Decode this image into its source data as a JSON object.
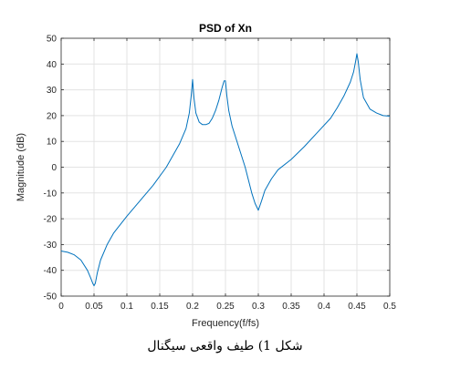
{
  "chart_data": {
    "type": "line",
    "title": "PSD of Xn",
    "xlabel": "Frequency(f/fs)",
    "ylabel": "Magnitude (dB)",
    "xlim": [
      0,
      0.5
    ],
    "ylim": [
      -50,
      50
    ],
    "xticks": [
      0,
      0.05,
      0.1,
      0.15,
      0.2,
      0.25,
      0.3,
      0.35,
      0.4,
      0.45,
      0.5
    ],
    "xtick_labels": [
      "0",
      "0.05",
      "0.1",
      "0.15",
      "0.2",
      "0.25",
      "0.3",
      "0.35",
      "0.4",
      "0.45",
      "0.5"
    ],
    "yticks": [
      -50,
      -40,
      -30,
      -20,
      -10,
      0,
      10,
      20,
      30,
      40,
      50
    ],
    "ytick_labels": [
      "-50",
      "-40",
      "-30",
      "-20",
      "-10",
      "0",
      "10",
      "20",
      "30",
      "40",
      "50"
    ],
    "grid": true,
    "line_color": "#0072bd",
    "series": [
      {
        "x": [
          0,
          0.01,
          0.02,
          0.03,
          0.04,
          0.045,
          0.048,
          0.05,
          0.052,
          0.055,
          0.06,
          0.07,
          0.08,
          0.1,
          0.12,
          0.14,
          0.16,
          0.18,
          0.19,
          0.195,
          0.198,
          0.2,
          0.202,
          0.205,
          0.21,
          0.215,
          0.22,
          0.225,
          0.23,
          0.235,
          0.24,
          0.245,
          0.248,
          0.25,
          0.252,
          0.255,
          0.26,
          0.27,
          0.28,
          0.29,
          0.295,
          0.3,
          0.305,
          0.31,
          0.32,
          0.33,
          0.35,
          0.37,
          0.39,
          0.41,
          0.42,
          0.43,
          0.44,
          0.445,
          0.448,
          0.45,
          0.452,
          0.455,
          0.46,
          0.47,
          0.48,
          0.49,
          0.5
        ],
        "y": [
          -32.5,
          -33,
          -34,
          -36,
          -40,
          -43,
          -45,
          -46,
          -45,
          -41,
          -36,
          -30,
          -25.5,
          -19,
          -13,
          -7,
          0,
          9,
          15,
          21,
          28,
          34,
          27,
          21,
          17.5,
          16.5,
          16.5,
          17,
          19,
          22,
          26,
          31,
          33.5,
          33.5,
          28,
          22,
          16,
          8,
          0,
          -10,
          -14,
          -16.7,
          -13,
          -9,
          -4.5,
          -1,
          3,
          8,
          13.5,
          19,
          23,
          27.5,
          33,
          37,
          41,
          44,
          41,
          34,
          27,
          22.5,
          21,
          20,
          19.8
        ]
      }
    ]
  },
  "caption": "شکل 1) طیف واقعی سیگنال"
}
